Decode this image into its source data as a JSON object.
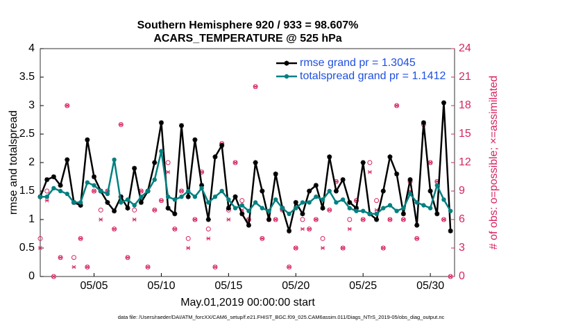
{
  "chart_data": {
    "type": "line",
    "title": "Southern Hemisphere 920 / 933 = 98.607%",
    "subtitle": "ACARS_TEMPERATURE @ 525 hPa",
    "xlabel": "May.01,2019 00:00:00 start",
    "ylabel": "rmse and totalspread",
    "y2label": "# of obs: o=possible; ×=assimilated",
    "footnote": "data file: /Users/raeder/DAI/ATM_forcXX/CAM6_setup/f.e21.FHIST_BGC.f09_025.CAM6assim.011/Diags_NTrS_2019-05/obs_diag_output.nc",
    "x": [
      0,
      0.5,
      1,
      1.5,
      2,
      2.5,
      3,
      3.5,
      4,
      4.5,
      5,
      5.5,
      6,
      6.5,
      7,
      7.5,
      8,
      8.5,
      9,
      9.5,
      10,
      10.5,
      11,
      11.5,
      12,
      12.5,
      13,
      13.5,
      14,
      14.5,
      15,
      15.5,
      16,
      16.5,
      17,
      17.5,
      18,
      18.5,
      19,
      19.5,
      20,
      20.5,
      21,
      21.5,
      22,
      22.5,
      23,
      23.5,
      24,
      24.5,
      25,
      25.5,
      26,
      26.5,
      27,
      27.5,
      28,
      28.5,
      29,
      29.5,
      30,
      30.5
    ],
    "xlim": [
      0,
      30.8
    ],
    "xticks": [
      {
        "value": 4,
        "label": "05/05"
      },
      {
        "value": 9,
        "label": "05/10"
      },
      {
        "value": 14,
        "label": "05/15"
      },
      {
        "value": 19,
        "label": "05/20"
      },
      {
        "value": 24,
        "label": "05/25"
      },
      {
        "value": 29,
        "label": "05/30"
      }
    ],
    "ylim": [
      0,
      4
    ],
    "yticks": [
      0,
      0.5,
      1,
      1.5,
      2,
      2.5,
      3,
      3.5,
      4
    ],
    "y2lim": [
      0,
      24
    ],
    "y2ticks": [
      0,
      3,
      6,
      9,
      12,
      15,
      18,
      21,
      24
    ],
    "series": [
      {
        "name": "rmse grand pr = 1.3045",
        "color": "#000000",
        "marker": "star",
        "values": [
          1.4,
          1.7,
          1.75,
          1.6,
          2.05,
          1.3,
          1.25,
          2.4,
          1.75,
          1.5,
          1.3,
          1.15,
          1.4,
          1.2,
          1.9,
          1.3,
          1.5,
          2.0,
          2.7,
          1.2,
          1.1,
          2.65,
          1.4,
          2.4,
          1.6,
          1.0,
          2.1,
          2.3,
          1.2,
          1.4,
          1.1,
          0.9,
          2.0,
          1.5,
          1.0,
          1.8,
          1.2,
          0.8,
          1.3,
          1.1,
          1.5,
          1.6,
          1.2,
          2.1,
          1.5,
          1.7,
          1.3,
          1.2,
          2.0,
          1.1,
          1.0,
          1.5,
          2.1,
          1.8,
          1.1,
          1.7,
          0.9,
          2.7,
          1.5,
          1.1,
          3.05,
          0.8
        ]
      },
      {
        "name": "totalspread grand pr = 1.1412",
        "color": "#008080",
        "marker": "dot",
        "values": [
          1.4,
          1.4,
          1.55,
          1.5,
          1.45,
          1.3,
          1.3,
          1.65,
          1.6,
          1.5,
          1.45,
          2.05,
          1.3,
          1.35,
          1.25,
          1.4,
          1.5,
          1.7,
          2.2,
          1.4,
          1.35,
          1.4,
          1.5,
          1.4,
          1.55,
          1.3,
          1.4,
          1.5,
          1.35,
          1.2,
          1.25,
          1.15,
          1.3,
          1.2,
          1.15,
          1.35,
          1.2,
          1.1,
          1.2,
          1.3,
          1.3,
          1.4,
          1.35,
          1.5,
          1.3,
          1.35,
          1.2,
          1.15,
          1.15,
          1.1,
          1.1,
          1.2,
          1.25,
          1.15,
          1.2,
          1.45,
          1.3,
          1.25,
          1.2,
          1.6,
          1.35,
          1.15
        ]
      },
      {
        "color": "#d6245f",
        "marker": "circle",
        "axis": "y2",
        "values": [
          4,
          9,
          0,
          2,
          18,
          2,
          4,
          1,
          9,
          7,
          9,
          5,
          16,
          2,
          7,
          9,
          1,
          7,
          8,
          12,
          5,
          9,
          4,
          6,
          11,
          5,
          1,
          14,
          7,
          12,
          8,
          6,
          20,
          4,
          6,
          6,
          7,
          1,
          3,
          6,
          5,
          6,
          4,
          7,
          10,
          3,
          6,
          8,
          6,
          12,
          8,
          3,
          6,
          18,
          6,
          10,
          4,
          16,
          12,
          10,
          6,
          0
        ]
      },
      {
        "color": "#d6245f",
        "marker": "cross",
        "axis": "y2",
        "values": [
          3,
          8,
          0,
          2,
          18,
          1,
          4,
          1,
          9,
          6,
          9,
          5,
          16,
          2,
          6,
          9,
          1,
          7,
          8,
          11,
          5,
          9,
          3,
          6,
          11,
          4,
          1,
          14,
          6,
          12,
          7,
          6,
          20,
          4,
          6,
          6,
          7,
          1,
          3,
          5,
          5,
          6,
          3,
          7,
          10,
          3,
          5,
          8,
          6,
          11,
          7,
          3,
          6,
          18,
          6,
          9,
          4,
          15,
          12,
          10,
          6,
          0
        ]
      }
    ],
    "legend": "upper right"
  }
}
